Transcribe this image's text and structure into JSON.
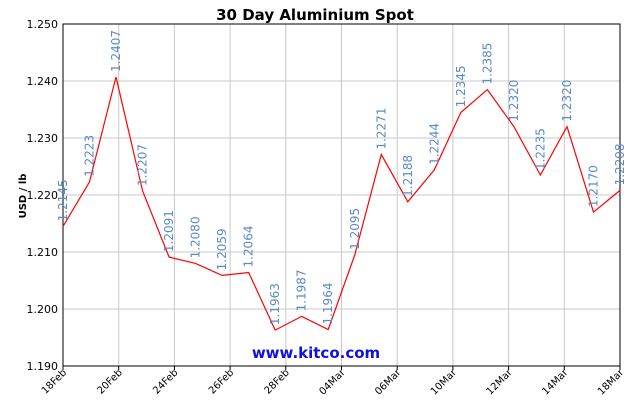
{
  "chart_data": {
    "type": "line",
    "title": "30 Day Aluminium Spot",
    "ylabel": "USD / lb",
    "xlabel": "",
    "ylim": [
      1.19,
      1.25
    ],
    "yticks": [
      "1.190",
      "1.200",
      "1.210",
      "1.220",
      "1.230",
      "1.240",
      "1.250"
    ],
    "xticks": [
      "18Feb",
      "20Feb",
      "24Feb",
      "26Feb",
      "28Feb",
      "04Mar",
      "06Mar",
      "10Mar",
      "12Mar",
      "14Mar",
      "18Mar"
    ],
    "grid": true,
    "line_color": "#ff0000",
    "label_color": "#5b8ac6",
    "series": [
      {
        "values": [
          1.2145,
          1.2223,
          1.2407,
          1.2207,
          1.2091,
          1.208,
          1.2059,
          1.2064,
          1.1963,
          1.1987,
          1.1964,
          1.2095,
          1.2271,
          1.2188,
          1.2244,
          1.2345,
          1.2385,
          1.232,
          1.2235,
          1.232,
          1.217,
          1.2208
        ],
        "labels": [
          "1.2145",
          "1.2223",
          "1.2407",
          "1.2207",
          "1.2091",
          "1.2080",
          "1.2059",
          "1.2064",
          "1.1963",
          "1.1987",
          "1.1964",
          "1.2095",
          "1.2271",
          "1.2188",
          "1.2244",
          "1.2345",
          "1.2385",
          "1.2320",
          "1.2235",
          "1.2320",
          "1.2170",
          "1.2208"
        ]
      }
    ]
  },
  "watermark": "www.kitco.com"
}
